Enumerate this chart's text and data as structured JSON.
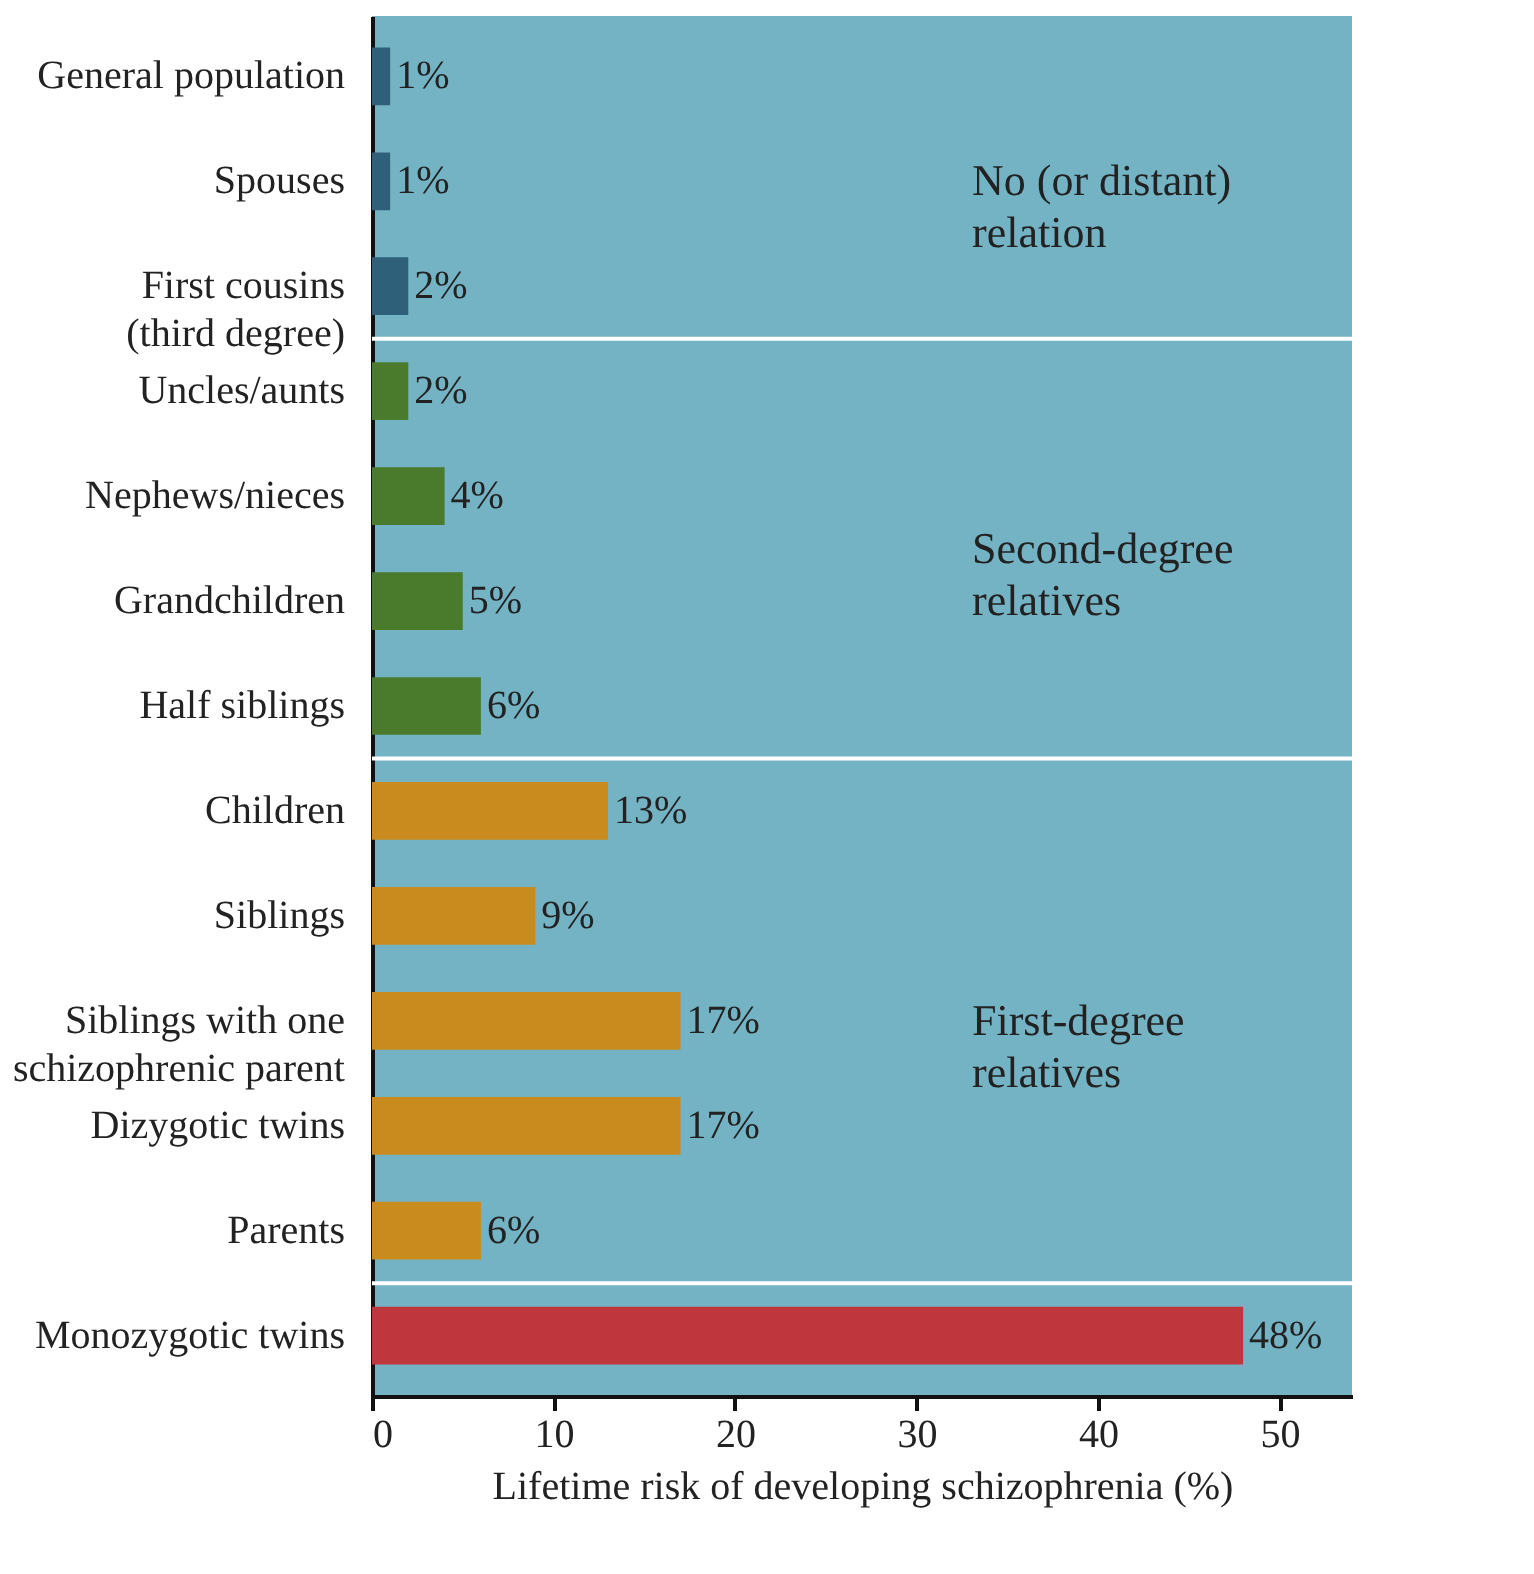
{
  "chart_data": {
    "type": "bar",
    "orientation": "horizontal",
    "categories": [
      "General population",
      "Spouses",
      "First cousins\n(third degree)",
      "Uncles/aunts",
      "Nephews/nieces",
      "Grandchildren",
      "Half siblings",
      "Children",
      "Siblings",
      "Siblings with one\nschizophrenic parent",
      "Dizygotic twins",
      "Parents",
      "Monozygotic twins"
    ],
    "values": [
      1,
      1,
      2,
      2,
      4,
      5,
      6,
      13,
      9,
      17,
      17,
      6,
      48
    ],
    "colors": [
      "#2e6079",
      "#2e6079",
      "#2e6079",
      "#4a7a2c",
      "#4a7a2c",
      "#4a7a2c",
      "#4a7a2c",
      "#c98b1e",
      "#c98b1e",
      "#c98b1e",
      "#c98b1e",
      "#c98b1e",
      "#c0363d"
    ],
    "value_labels": [
      "1%",
      "1%",
      "2%",
      "2%",
      "4%",
      "5%",
      "6%",
      "13%",
      "9%",
      "17%",
      "17%",
      "6%",
      "48%"
    ],
    "xlabel": "Lifetime risk of developing schizophrenia (%)",
    "xlim": [
      0,
      54
    ],
    "xticks": [
      0,
      10,
      20,
      30,
      40,
      50
    ],
    "annotations": [
      "No (or distant)\nrelation",
      "Second-degree\nrelatives",
      "First-degree\nrelatives"
    ],
    "grid": false
  }
}
